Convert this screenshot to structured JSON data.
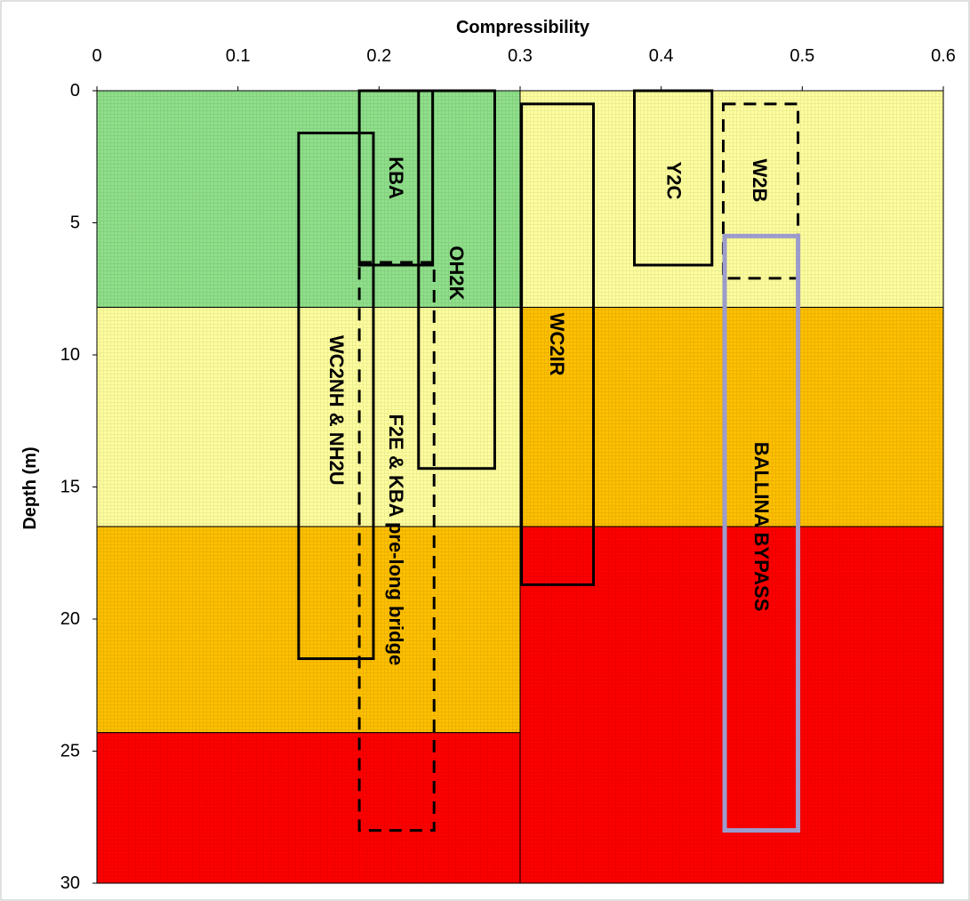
{
  "chart_data": {
    "type": "range-box",
    "xlabel": "Compressibility",
    "ylabel": "Depth (m)",
    "xlim": [
      0,
      0.6
    ],
    "ylim": [
      0,
      30
    ],
    "y_inverted": true,
    "x_axis_position": "top",
    "x_ticks": [
      "0",
      "0.1",
      "0.2",
      "0.3",
      "0.4",
      "0.5",
      "0.6"
    ],
    "y_ticks": [
      "0",
      "5",
      "10",
      "15",
      "20",
      "25",
      "30"
    ],
    "zone_colors": {
      "green": "#8fe08a",
      "yellow": "#ffff9e",
      "orange": "#ffc000",
      "red": "#ff0000"
    },
    "zones": [
      {
        "x": [
          0,
          0.3
        ],
        "depth": [
          0,
          8.2
        ],
        "color": "green"
      },
      {
        "x": [
          0,
          0.3
        ],
        "depth": [
          8.2,
          16.5
        ],
        "color": "yellow"
      },
      {
        "x": [
          0,
          0.3
        ],
        "depth": [
          16.5,
          24.3
        ],
        "color": "orange"
      },
      {
        "x": [
          0,
          0.3
        ],
        "depth": [
          24.3,
          30
        ],
        "color": "red"
      },
      {
        "x": [
          0.3,
          0.6
        ],
        "depth": [
          0,
          8.2
        ],
        "color": "yellow"
      },
      {
        "x": [
          0.3,
          0.6
        ],
        "depth": [
          8.2,
          16.5
        ],
        "color": "orange"
      },
      {
        "x": [
          0.3,
          0.6
        ],
        "depth": [
          16.5,
          30
        ],
        "color": "red"
      }
    ],
    "boxes": [
      {
        "label": "KBA",
        "x": [
          0.186,
          0.238
        ],
        "depth": [
          0,
          6.6
        ],
        "style": "solid",
        "color": "#000000",
        "label_depth": 3.3,
        "label_x": 0.212
      },
      {
        "label": "OH2K",
        "x": [
          0.228,
          0.282
        ],
        "depth": [
          0,
          14.3
        ],
        "style": "solid",
        "color": "#000000",
        "label_depth": 6.9,
        "label_x": 0.255
      },
      {
        "label": "WC2NH & NH2U",
        "x": [
          0.143,
          0.196
        ],
        "depth": [
          1.6,
          21.5
        ],
        "style": "solid",
        "color": "#000000",
        "label_depth": 12.1,
        "label_x": 0.17
      },
      {
        "label": "F2E & KBA pre-long bridge",
        "x": [
          0.186,
          0.239
        ],
        "depth": [
          6.5,
          28.0
        ],
        "style": "dashed",
        "color": "#000000",
        "label_depth": 17.0,
        "label_x": 0.212
      },
      {
        "label": "WC2IR",
        "x": [
          0.301,
          0.352
        ],
        "depth": [
          0.5,
          18.7
        ],
        "style": "solid",
        "color": "#000000",
        "label_depth": 9.6,
        "label_x": 0.326
      },
      {
        "label": "Y2C",
        "x": [
          0.381,
          0.436
        ],
        "depth": [
          0,
          6.6
        ],
        "style": "solid",
        "color": "#000000",
        "label_depth": 3.4,
        "label_x": 0.409
      },
      {
        "label": "W2B",
        "x": [
          0.444,
          0.497
        ],
        "depth": [
          0.5,
          7.1
        ],
        "style": "dashed",
        "color": "#000000",
        "label_depth": 3.4,
        "label_x": 0.47
      },
      {
        "label": "BALLINA BYPASS",
        "x": [
          0.445,
          0.497
        ],
        "depth": [
          5.5,
          28.0
        ],
        "style": "solid",
        "color": "#9c9ccc",
        "label_depth": 16.5,
        "label_x": 0.471
      }
    ],
    "grid": false,
    "legend": "none"
  }
}
